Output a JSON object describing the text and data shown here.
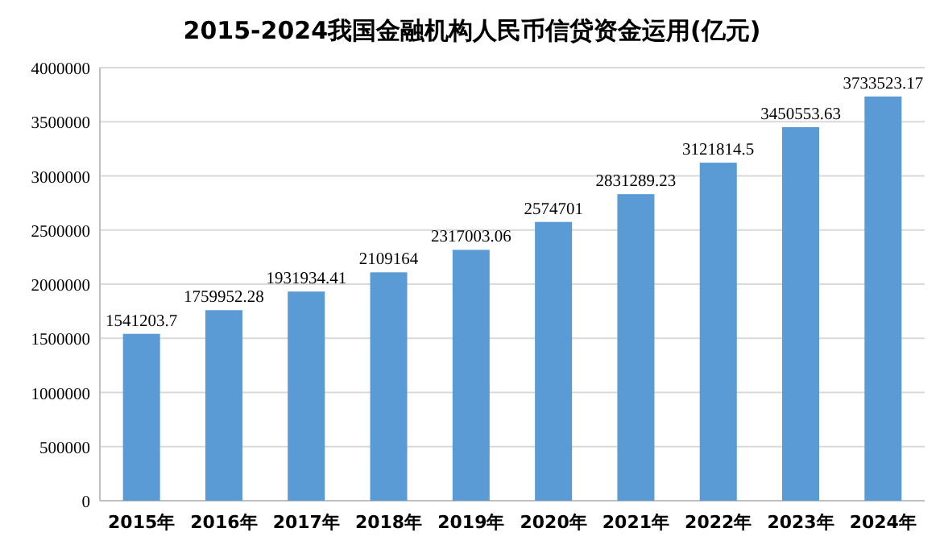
{
  "chart_data": {
    "type": "bar",
    "title": "2015-2024我国金融机构人民币信贷资金运用(亿元)",
    "categories": [
      "2015年",
      "2016年",
      "2017年",
      "2018年",
      "2019年",
      "2020年",
      "2021年",
      "2022年",
      "2023年",
      "2024年"
    ],
    "values": [
      1541203.7,
      1759952.28,
      1931934.41,
      2109164,
      2317003.06,
      2574701,
      2831289.23,
      3121814.5,
      3450553.63,
      3733523.17
    ],
    "color": "#5b9bd5",
    "ylim": [
      0,
      4000000
    ],
    "yticks": [
      0,
      500000,
      1000000,
      1500000,
      2000000,
      2500000,
      3000000,
      3500000,
      4000000
    ],
    "grid": "y",
    "data_labels": true
  }
}
